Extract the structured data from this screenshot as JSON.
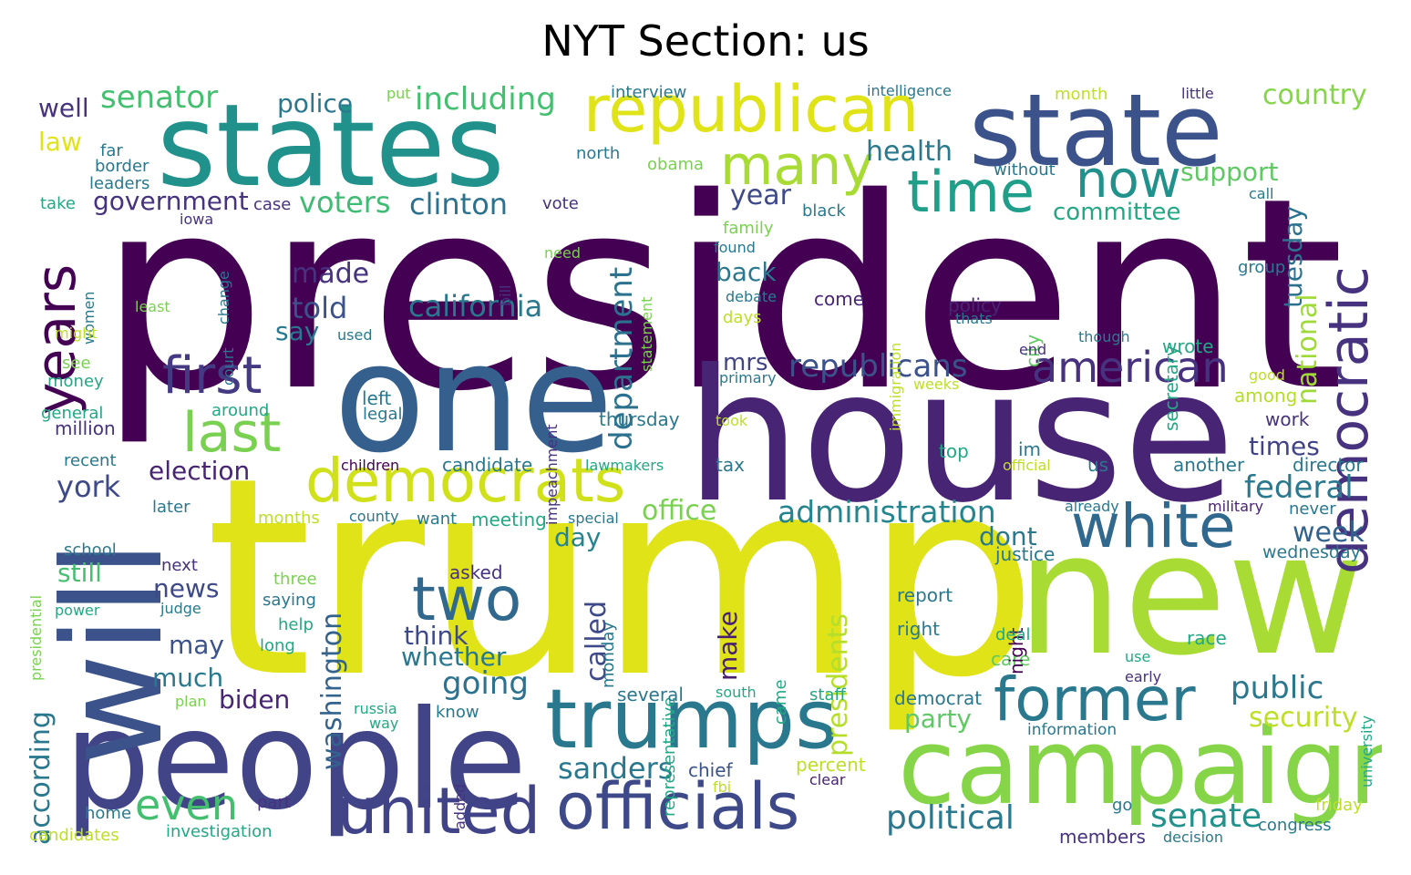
{
  "title": "NYT Section: us",
  "palette": [
    "#440154",
    "#482475",
    "#414487",
    "#355f8d",
    "#2a788e",
    "#21918c",
    "#22a884",
    "#44bf70",
    "#7ad151",
    "#bddf26",
    "#dfe318"
  ],
  "words": [
    {
      "t": "president",
      "c": "#440154"
    },
    {
      "t": "trump",
      "c": "#dfe318"
    },
    {
      "t": "one",
      "c": "#355f8d"
    },
    {
      "t": "house",
      "c": "#482475"
    },
    {
      "t": "new",
      "c": "#a8db34"
    },
    {
      "t": "states",
      "c": "#21918c"
    },
    {
      "t": "state",
      "c": "#3b528b"
    },
    {
      "t": "people",
      "c": "#414487"
    },
    {
      "t": "will",
      "c": "#3b528b"
    },
    {
      "t": "republican",
      "c": "#dfe318"
    },
    {
      "t": "campaign",
      "c": "#86d549"
    },
    {
      "t": "trumps",
      "c": "#2a788e"
    },
    {
      "t": "democratic",
      "c": "#46327e"
    },
    {
      "t": "officials",
      "c": "#3e4989"
    },
    {
      "t": "united",
      "c": "#404387"
    },
    {
      "t": "white",
      "c": "#31688e"
    },
    {
      "t": "democrats",
      "c": "#d0e11c"
    },
    {
      "t": "years",
      "c": "#440154"
    },
    {
      "t": "former",
      "c": "#2a788e"
    },
    {
      "t": "two",
      "c": "#31688e"
    },
    {
      "t": "many",
      "c": "#a8db34"
    },
    {
      "t": "first",
      "c": "#443983"
    },
    {
      "t": "last",
      "c": "#7ad151"
    },
    {
      "t": "time",
      "c": "#1f9e89"
    },
    {
      "t": "now",
      "c": "#21918c"
    },
    {
      "t": "american",
      "c": "#46327e"
    },
    {
      "t": "even",
      "c": "#44bf70"
    },
    {
      "t": "republicans",
      "c": "#3b528b"
    },
    {
      "t": "administration",
      "c": "#25858e"
    },
    {
      "t": "department",
      "c": "#2c728e"
    },
    {
      "t": "political",
      "c": "#2a788e"
    },
    {
      "t": "senate",
      "c": "#21918c"
    },
    {
      "t": "including",
      "c": "#44bf70"
    },
    {
      "t": "senator",
      "c": "#44bf70"
    },
    {
      "t": "california",
      "c": "#2a788e"
    },
    {
      "t": "clinton",
      "c": "#2c728e"
    },
    {
      "t": "voters",
      "c": "#3fbc73"
    },
    {
      "t": "government",
      "c": "#46327e"
    },
    {
      "t": "election",
      "c": "#482475"
    },
    {
      "t": "york",
      "c": "#3e4989"
    },
    {
      "t": "washington",
      "c": "#33638d"
    },
    {
      "t": "according",
      "c": "#2a788e"
    },
    {
      "t": "presidents",
      "c": "#b5de2b"
    },
    {
      "t": "national",
      "c": "#a0da39"
    },
    {
      "t": "tuesday",
      "c": "#2c728e"
    },
    {
      "t": "federal",
      "c": "#2a788e"
    },
    {
      "t": "public",
      "c": "#2a788e"
    },
    {
      "t": "security",
      "c": "#bddf26"
    },
    {
      "t": "sanders",
      "c": "#2a788e"
    },
    {
      "t": "going",
      "c": "#2c728e"
    },
    {
      "t": "office",
      "c": "#7ad151"
    },
    {
      "t": "called",
      "c": "#3e4989"
    },
    {
      "t": "country",
      "c": "#86d549"
    },
    {
      "t": "health",
      "c": "#2a788e"
    },
    {
      "t": "year",
      "c": "#3e4989"
    },
    {
      "t": "committee",
      "c": "#22a884"
    },
    {
      "t": "support",
      "c": "#5ec962"
    },
    {
      "t": "times",
      "c": "#404387"
    },
    {
      "t": "week",
      "c": "#33638d"
    },
    {
      "t": "dont",
      "c": "#2a788e"
    },
    {
      "t": "party",
      "c": "#5ec962"
    },
    {
      "t": "made",
      "c": "#46327e"
    },
    {
      "t": "told",
      "c": "#3b528b"
    },
    {
      "t": "back",
      "c": "#2a788e"
    },
    {
      "t": "police",
      "c": "#2a788e"
    },
    {
      "t": "law",
      "c": "#dfe318"
    },
    {
      "t": "well",
      "c": "#46327e"
    },
    {
      "t": "mrs",
      "c": "#414487"
    },
    {
      "t": "news",
      "c": "#3e4989"
    },
    {
      "t": "think",
      "c": "#3e4989"
    },
    {
      "t": "whether",
      "c": "#2a788e"
    },
    {
      "t": "make",
      "c": "#481f70"
    },
    {
      "t": "much",
      "c": "#2a788e"
    },
    {
      "t": "may",
      "c": "#3b528b"
    },
    {
      "t": "biden",
      "c": "#482475"
    },
    {
      "t": "still",
      "c": "#44bf70"
    },
    {
      "t": "say",
      "c": "#2a788e"
    },
    {
      "t": "day",
      "c": "#25858e"
    },
    {
      "t": "wrote",
      "c": "#22a884"
    },
    {
      "t": "justice",
      "c": "#2a788e"
    },
    {
      "t": "wednesday",
      "c": "#2a788e"
    },
    {
      "t": "another",
      "c": "#2a788e"
    },
    {
      "t": "director",
      "c": "#2a788e"
    },
    {
      "t": "work",
      "c": "#46327e"
    },
    {
      "t": "among",
      "c": "#b5de2b"
    },
    {
      "t": "city",
      "c": "#5ec962"
    },
    {
      "t": "secretary",
      "c": "#22a884"
    },
    {
      "t": "policy",
      "c": "#482475"
    },
    {
      "t": "come",
      "c": "#482475"
    },
    {
      "t": "thursday",
      "c": "#2a788e"
    },
    {
      "t": "left",
      "c": "#2a788e"
    },
    {
      "t": "legal",
      "c": "#2a788e"
    },
    {
      "t": "candidate",
      "c": "#2a788e"
    },
    {
      "t": "children",
      "c": "#440154"
    },
    {
      "t": "lawmakers",
      "c": "#22a884"
    },
    {
      "t": "months",
      "c": "#bddf26"
    },
    {
      "t": "meeting",
      "c": "#22a884"
    },
    {
      "t": "county",
      "c": "#2a788e"
    },
    {
      "t": "want",
      "c": "#2a788e"
    },
    {
      "t": "special",
      "c": "#2a788e"
    },
    {
      "t": "asked",
      "c": "#46327e"
    },
    {
      "t": "monday",
      "c": "#2a788e"
    },
    {
      "t": "representative",
      "c": "#22a884"
    },
    {
      "t": "several",
      "c": "#2a788e"
    },
    {
      "t": "south",
      "c": "#22a884"
    },
    {
      "t": "staff",
      "c": "#22a884"
    },
    {
      "t": "democrat",
      "c": "#2a788e"
    },
    {
      "t": "information",
      "c": "#2a788e"
    },
    {
      "t": "chief",
      "c": "#3b528b"
    },
    {
      "t": "percent",
      "c": "#bddf26"
    },
    {
      "t": "clear",
      "c": "#481f70"
    },
    {
      "t": "fbi",
      "c": "#bddf26"
    },
    {
      "t": "came",
      "c": "#22a884"
    },
    {
      "t": "care",
      "c": "#5ec962"
    },
    {
      "t": "report",
      "c": "#2a788e"
    },
    {
      "t": "right",
      "c": "#2a788e"
    },
    {
      "t": "night",
      "c": "#440154"
    },
    {
      "t": "deal",
      "c": "#22a884"
    },
    {
      "t": "race",
      "c": "#22a884"
    },
    {
      "t": "use",
      "c": "#22a884"
    },
    {
      "t": "early",
      "c": "#46327e"
    },
    {
      "t": "university",
      "c": "#22a884"
    },
    {
      "t": "go",
      "c": "#2a788e"
    },
    {
      "t": "members",
      "c": "#46327e"
    },
    {
      "t": "decision",
      "c": "#2a788e"
    },
    {
      "t": "congress",
      "c": "#2a788e"
    },
    {
      "t": "friday",
      "c": "#bddf26"
    },
    {
      "t": "military",
      "c": "#482475"
    },
    {
      "t": "never",
      "c": "#2a788e"
    },
    {
      "t": "already",
      "c": "#2a788e"
    },
    {
      "t": "official",
      "c": "#bddf26"
    },
    {
      "t": "us",
      "c": "#2a788e"
    },
    {
      "t": "im",
      "c": "#2a788e"
    },
    {
      "t": "top",
      "c": "#22a884"
    },
    {
      "t": "tax",
      "c": "#2a788e"
    },
    {
      "t": "took",
      "c": "#bddf26"
    },
    {
      "t": "weeks",
      "c": "#bddf26"
    },
    {
      "t": "end",
      "c": "#46327e"
    },
    {
      "t": "good",
      "c": "#bddf26"
    },
    {
      "t": "though",
      "c": "#2a788e"
    },
    {
      "t": "thats",
      "c": "#2a788e"
    },
    {
      "t": "group",
      "c": "#2a788e"
    },
    {
      "t": "call",
      "c": "#2a788e"
    },
    {
      "t": "without",
      "c": "#2a788e"
    },
    {
      "t": "little",
      "c": "#46327e"
    },
    {
      "t": "month",
      "c": "#bddf26"
    },
    {
      "t": "intelligence",
      "c": "#2a788e"
    },
    {
      "t": "interview",
      "c": "#2a788e"
    },
    {
      "t": "put",
      "c": "#7ad151"
    },
    {
      "t": "north",
      "c": "#2a788e"
    },
    {
      "t": "obama",
      "c": "#7ad151"
    },
    {
      "t": "vote",
      "c": "#46327e"
    },
    {
      "t": "black",
      "c": "#2a788e"
    },
    {
      "t": "family",
      "c": "#7ad151"
    },
    {
      "t": "found",
      "c": "#2a788e"
    },
    {
      "t": "statement",
      "c": "#7ad151"
    },
    {
      "t": "need",
      "c": "#7ad151"
    },
    {
      "t": "immigration",
      "c": "#bddf26"
    },
    {
      "t": "debate",
      "c": "#2a788e"
    },
    {
      "t": "days",
      "c": "#bddf26"
    },
    {
      "t": "primary",
      "c": "#2a788e"
    },
    {
      "t": "impeachment",
      "c": "#46327e"
    },
    {
      "t": "bill",
      "c": "#46327e"
    },
    {
      "t": "iowa",
      "c": "#46327e"
    },
    {
      "t": "case",
      "c": "#46327e"
    },
    {
      "t": "change",
      "c": "#2a788e"
    },
    {
      "t": "court",
      "c": "#2a788e"
    },
    {
      "t": "used",
      "c": "#2a788e"
    },
    {
      "t": "women",
      "c": "#2a788e"
    },
    {
      "t": "least",
      "c": "#7ad151"
    },
    {
      "t": "might",
      "c": "#bddf26"
    },
    {
      "t": "see",
      "c": "#7ad151"
    },
    {
      "t": "money",
      "c": "#22a884"
    },
    {
      "t": "general",
      "c": "#22a884"
    },
    {
      "t": "around",
      "c": "#22a884"
    },
    {
      "t": "million",
      "c": "#46327e"
    },
    {
      "t": "recent",
      "c": "#2a788e"
    },
    {
      "t": "later",
      "c": "#2a788e"
    },
    {
      "t": "presidential",
      "c": "#7ad151"
    },
    {
      "t": "school",
      "c": "#2a788e"
    },
    {
      "t": "next",
      "c": "#46327e"
    },
    {
      "t": "three",
      "c": "#7ad151"
    },
    {
      "t": "saying",
      "c": "#2a788e"
    },
    {
      "t": "judge",
      "c": "#2a788e"
    },
    {
      "t": "help",
      "c": "#22a884"
    },
    {
      "t": "long",
      "c": "#22a884"
    },
    {
      "t": "power",
      "c": "#22a884"
    },
    {
      "t": "plan",
      "c": "#7ad151"
    },
    {
      "t": "russia",
      "c": "#22a884"
    },
    {
      "t": "way",
      "c": "#22a884"
    },
    {
      "t": "know",
      "c": "#2a788e"
    },
    {
      "t": "added",
      "c": "#46327e"
    },
    {
      "t": "home",
      "c": "#2a788e"
    },
    {
      "t": "part",
      "c": "#46327e"
    },
    {
      "t": "investigation",
      "c": "#22a884"
    },
    {
      "t": "candidates",
      "c": "#bddf26"
    },
    {
      "t": "far",
      "c": "#2a788e"
    },
    {
      "t": "border",
      "c": "#2a788e"
    },
    {
      "t": "leaders",
      "c": "#2a788e"
    },
    {
      "t": "take",
      "c": "#22a884"
    }
  ]
}
